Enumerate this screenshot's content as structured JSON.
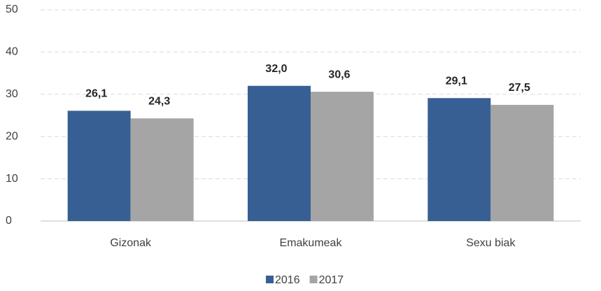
{
  "chart_data": {
    "type": "bar",
    "categories": [
      "Gizonak",
      "Emakumeak",
      "Sexu biak"
    ],
    "series": [
      {
        "name": "2016",
        "color": "#375f93",
        "values": [
          26.1,
          32.0,
          29.1
        ],
        "value_labels": [
          "26,1",
          "32,0",
          "29,1"
        ]
      },
      {
        "name": "2017",
        "color": "#a5a5a5",
        "values": [
          24.3,
          30.6,
          27.5
        ],
        "value_labels": [
          "24,3",
          "30,6",
          "27,5"
        ]
      }
    ],
    "ylim": [
      0,
      50
    ],
    "yticks": [
      0,
      10,
      20,
      30,
      40,
      50
    ],
    "grid": true,
    "legend": "bottom"
  }
}
